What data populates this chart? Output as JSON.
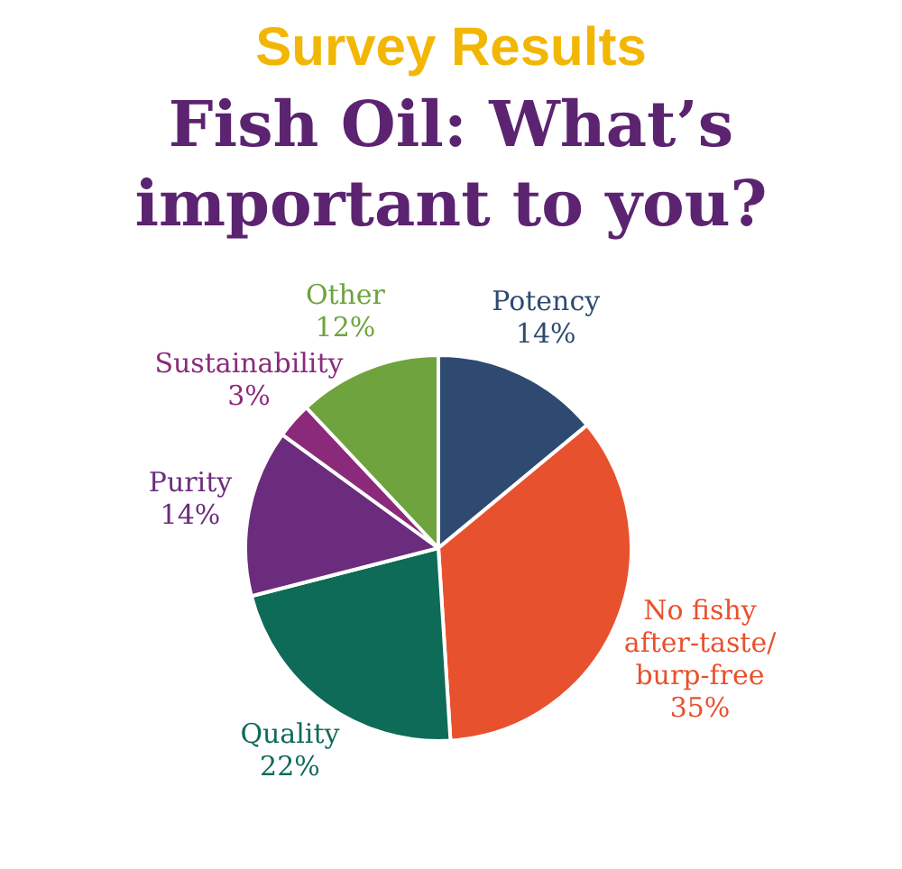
{
  "chart_data": {
    "type": "pie",
    "title": "Survey Results",
    "subtitle": "Fish Oil: What’s important to you?",
    "categories": [
      "Potency",
      "No fishy after-taste/burp-free",
      "Quality",
      "Purity",
      "Sustainability",
      "Other"
    ],
    "values": [
      14,
      35,
      22,
      14,
      3,
      12
    ],
    "value_labels": [
      "14%",
      "35%",
      "22%",
      "14%",
      "3%",
      "12%"
    ],
    "colors": [
      "#2e4a70",
      "#e8512d",
      "#0e6b58",
      "#6b2c7d",
      "#8b2a7b",
      "#6ea33d"
    ],
    "legend": false
  }
}
